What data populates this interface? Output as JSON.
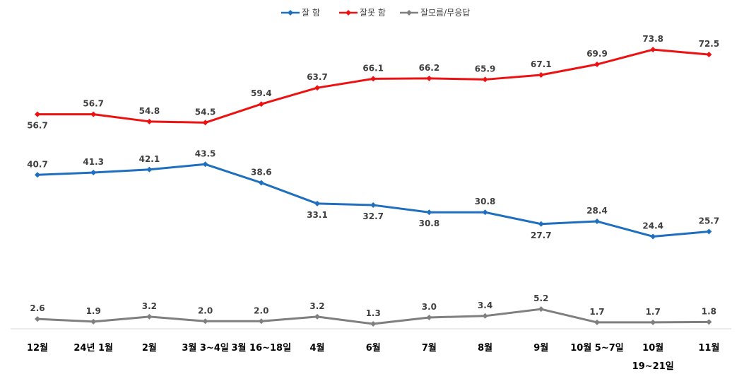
{
  "chart_data": {
    "type": "line",
    "categories": [
      "12월",
      "24년 1월",
      "2월",
      "3월 3~4일",
      "3월 16~18일",
      "4월",
      "6월",
      "7월",
      "8월",
      "9월",
      "10월 5~7일",
      "10월",
      "11월"
    ],
    "category_sublabels": [
      "",
      "",
      "",
      "",
      "",
      "",
      "",
      "",
      "",
      "",
      "",
      "19~21일",
      ""
    ],
    "series": [
      {
        "name": "잘 함",
        "color": "#1f6fbf",
        "values": [
          40.7,
          41.3,
          42.1,
          43.5,
          38.6,
          33.1,
          32.7,
          30.8,
          30.8,
          27.7,
          28.4,
          24.4,
          25.7
        ],
        "label_pos": [
          "above",
          "above",
          "above",
          "above",
          "above",
          "below",
          "below",
          "below",
          "above",
          "below",
          "above",
          "above",
          "above"
        ]
      },
      {
        "name": "잘못 함",
        "color": "#ee1111",
        "values": [
          56.7,
          56.7,
          54.8,
          54.5,
          59.4,
          63.7,
          66.1,
          66.2,
          65.9,
          67.1,
          69.9,
          73.8,
          72.5
        ],
        "label_pos": [
          "below",
          "above",
          "above",
          "above",
          "above",
          "above",
          "above",
          "above",
          "above",
          "above",
          "above",
          "above",
          "above"
        ]
      },
      {
        "name": "잘모름/무응답",
        "color": "#7f7f7f",
        "values": [
          2.6,
          1.9,
          3.2,
          2.0,
          2.0,
          3.2,
          1.3,
          3.0,
          3.4,
          5.2,
          1.7,
          1.7,
          1.8
        ],
        "label_pos": [
          "above",
          "above",
          "above",
          "above",
          "above",
          "above",
          "above",
          "above",
          "above",
          "above",
          "above",
          "above",
          "above"
        ]
      }
    ],
    "ylim": [
      0,
      80
    ],
    "legend_position": "top-center",
    "grid": false
  }
}
